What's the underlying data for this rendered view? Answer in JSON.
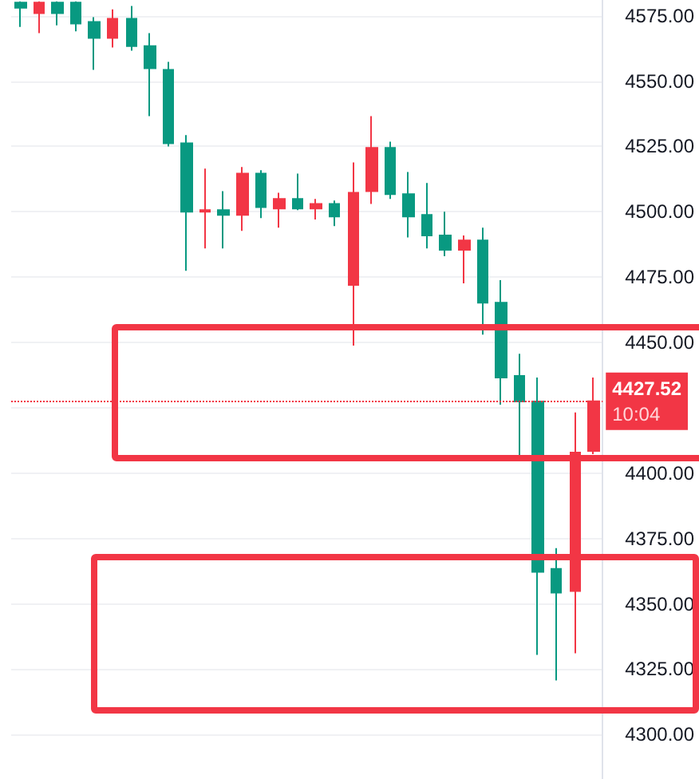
{
  "chart_data": {
    "type": "candlestick",
    "categories": [
      null,
      null,
      null,
      null,
      null,
      null,
      null,
      null,
      null,
      null,
      null,
      null,
      null,
      null,
      null,
      null,
      null,
      null,
      null,
      null,
      null,
      null,
      null,
      null,
      null,
      null,
      null,
      null,
      null,
      null,
      null,
      null
    ],
    "ohlc": [
      [
        4578,
        4580.5,
        4570.7,
        4580
      ],
      [
        4580,
        4580.5,
        4568.3,
        4576
      ],
      [
        4576,
        4580.5,
        4571.3,
        4580
      ],
      [
        4572,
        4580.5,
        4569,
        4580
      ],
      [
        4566.5,
        4574.4,
        4554.3,
        4572.6
      ],
      [
        4573.8,
        4577.4,
        4562.8,
        4566.5
      ],
      [
        4563.4,
        4578.7,
        4561.6,
        4573.8
      ],
      [
        4554.9,
        4568.3,
        4536.6,
        4563.4
      ],
      [
        4526.2,
        4557.3,
        4525,
        4554.3
      ],
      [
        4500,
        4529.3,
        4477.4,
        4526.2
      ],
      [
        4500.6,
        4516.5,
        4486,
        4500
      ],
      [
        4498.8,
        4507.9,
        4486,
        4500.6
      ],
      [
        4514.6,
        4517.1,
        4492.7,
        4498.8
      ],
      [
        4501.8,
        4515.9,
        4497.6,
        4514.6
      ],
      [
        4504.9,
        4507.3,
        4493.9,
        4501.2
      ],
      [
        4501.2,
        4514.6,
        4500.6,
        4504.9
      ],
      [
        4503,
        4504.9,
        4497,
        4501.2
      ],
      [
        4498.2,
        4504.3,
        4494.5,
        4503
      ],
      [
        4507.3,
        4518.9,
        4448.8,
        4472
      ],
      [
        4524.4,
        4536.6,
        4503,
        4507.9
      ],
      [
        4506.7,
        4526.8,
        4504.9,
        4524.4
      ],
      [
        4498.2,
        4515.2,
        4490.2,
        4506.7
      ],
      [
        4490.9,
        4511,
        4486,
        4498.8
      ],
      [
        4485.4,
        4500,
        4483,
        4490.9
      ],
      [
        4489,
        4490.9,
        4472.6,
        4485.4
      ],
      [
        4465.2,
        4493.9,
        4453,
        4489
      ],
      [
        4436.6,
        4473.8,
        4426.2,
        4465.2
      ],
      [
        4427.4,
        4445.7,
        4406.1,
        4437.2
      ],
      [
        4362.2,
        4436.6,
        4330.5,
        4427.4
      ],
      [
        4354.3,
        4371.3,
        4320.7,
        4363.4
      ],
      [
        4407.9,
        4423.2,
        4331.1,
        4354.9
      ],
      [
        4427.5,
        4436.6,
        4407.3,
        4408.5
      ]
    ],
    "colors": [
      "#089981",
      "#f23645",
      "#089981",
      "#089981",
      "#089981",
      "#f23645",
      "#089981",
      "#089981",
      "#089981",
      "#089981",
      "#f23645",
      "#089981",
      "#f23645",
      "#089981",
      "#f23645",
      "#089981",
      "#f23645",
      "#089981",
      "#f23645",
      "#f23645",
      "#089981",
      "#089981",
      "#089981",
      "#089981",
      "#f23645",
      "#089981",
      "#089981",
      "#089981",
      "#089981",
      "#089981",
      "#f23645",
      "#f23645"
    ],
    "ylim": [
      4283,
      4581
    ],
    "yticks": [
      {
        "value": 4300,
        "label": "4300.00"
      },
      {
        "value": 4325,
        "label": "4325.00"
      },
      {
        "value": 4350,
        "label": "4350.00"
      },
      {
        "value": 4375,
        "label": "4375.00"
      },
      {
        "value": 4400,
        "label": "4400.00"
      },
      {
        "value": 4425,
        "label": null
      },
      {
        "value": 4450,
        "label": "4450.00"
      },
      {
        "value": 4475,
        "label": "4475.00"
      },
      {
        "value": 4500,
        "label": "4500.00"
      },
      {
        "value": 4525,
        "label": "4525.00"
      },
      {
        "value": 4550,
        "label": "4550.00"
      },
      {
        "value": 4575,
        "label": "4575.00"
      }
    ],
    "grid": "y",
    "tick_labels": "y",
    "ref_lines": [
      {
        "axis": "y",
        "value": 4427.52,
        "label": "4427.52",
        "color": "#f23645",
        "line_style": "dotted"
      }
    ],
    "annotations": [
      "10:04"
    ]
  }
}
